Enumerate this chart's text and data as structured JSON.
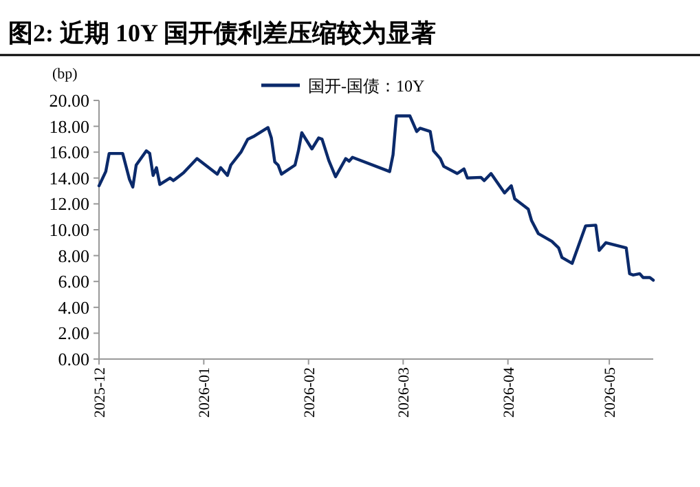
{
  "chart_data": {
    "type": "line",
    "title": "图2:  近期 10Y 国开债利差压缩较为显著",
    "ylabel": "(bp)",
    "x": [
      "2025-12-01",
      "2025-12-03",
      "2025-12-04",
      "2025-12-08",
      "2025-12-10",
      "2025-12-11",
      "2025-12-12",
      "2025-12-15",
      "2025-12-16",
      "2025-12-17",
      "2025-12-18",
      "2025-12-19",
      "2025-12-22",
      "2025-12-23",
      "2025-12-26",
      "2025-12-30",
      "2026-01-05",
      "2026-01-06",
      "2026-01-08",
      "2026-01-09",
      "2026-01-12",
      "2026-01-14",
      "2026-01-16",
      "2026-01-20",
      "2026-01-21",
      "2026-01-22",
      "2026-01-23",
      "2026-01-24",
      "2026-01-28",
      "2026-01-29",
      "2026-01-30",
      "2026-02-02",
      "2026-02-04",
      "2026-02-05",
      "2026-02-07",
      "2026-02-09",
      "2026-02-12",
      "2026-02-13",
      "2026-02-14",
      "2026-02-25",
      "2026-02-26",
      "2026-02-27",
      "2026-03-03",
      "2026-03-05",
      "2026-03-06",
      "2026-03-09",
      "2026-03-10",
      "2026-03-12",
      "2026-03-13",
      "2026-03-17",
      "2026-03-19",
      "2026-03-20",
      "2026-03-24",
      "2026-03-25",
      "2026-03-27",
      "2026-03-31",
      "2026-04-02",
      "2026-04-03",
      "2026-04-07",
      "2026-04-08",
      "2026-04-10",
      "2026-04-14",
      "2026-04-16",
      "2026-04-17",
      "2026-04-20",
      "2026-04-24",
      "2026-04-27",
      "2026-04-28",
      "2026-04-30",
      "2026-05-06",
      "2026-05-07",
      "2026-05-08",
      "2026-05-10",
      "2026-05-11",
      "2026-05-13",
      "2026-05-14"
    ],
    "series": [
      {
        "name": "国开-国债：10Y",
        "color": "#0b2a6b",
        "values": [
          13.4,
          14.5,
          15.9,
          15.9,
          13.9,
          13.3,
          15,
          16.1,
          15.9,
          14.2,
          14.8,
          13.5,
          14,
          13.8,
          14.4,
          15.5,
          14.3,
          14.8,
          14.2,
          15,
          16,
          17,
          17.25,
          17.9,
          17.1,
          15.25,
          15,
          14.3,
          15,
          16.1,
          17.5,
          16.25,
          17.1,
          17,
          15.35,
          14.1,
          15.5,
          15.3,
          15.6,
          14.5,
          15.8,
          18.8,
          18.8,
          17.6,
          17.85,
          17.6,
          16.1,
          15.5,
          14.9,
          14.35,
          14.7,
          14,
          14.05,
          13.8,
          14.35,
          12.85,
          13.4,
          12.4,
          11.6,
          10.7,
          9.7,
          9.1,
          8.6,
          7.85,
          7.4,
          10.3,
          10.35,
          8.4,
          9,
          8.6,
          6.6,
          6.5,
          6.6,
          6.3,
          6.3,
          6.1
        ]
      }
    ],
    "xlim": [
      "2025-12-01",
      "2026-05-14"
    ],
    "xticks": [
      {
        "value": "2025-12-01",
        "label": "2025-12"
      },
      {
        "value": "2026-01-01",
        "label": "2026-01"
      },
      {
        "value": "2026-02-01",
        "label": "2026-02"
      },
      {
        "value": "2026-03-01",
        "label": "2026-03"
      },
      {
        "value": "2026-04-01",
        "label": "2026-04"
      },
      {
        "value": "2026-05-01",
        "label": "2026-05"
      }
    ],
    "ylim": [
      0,
      20
    ],
    "yticks": [
      {
        "value": 0,
        "label": "0.00"
      },
      {
        "value": 2,
        "label": "2.00"
      },
      {
        "value": 4,
        "label": "4.00"
      },
      {
        "value": 6,
        "label": "6.00"
      },
      {
        "value": 8,
        "label": "8.00"
      },
      {
        "value": 10,
        "label": "10.00"
      },
      {
        "value": 12,
        "label": "12.00"
      },
      {
        "value": 14,
        "label": "14.00"
      },
      {
        "value": 16,
        "label": "16.00"
      },
      {
        "value": 18,
        "label": "18.00"
      },
      {
        "value": 20,
        "label": "20.00"
      }
    ],
    "grid": false,
    "legend": "top",
    "marker": "none",
    "line_style": "solid"
  }
}
